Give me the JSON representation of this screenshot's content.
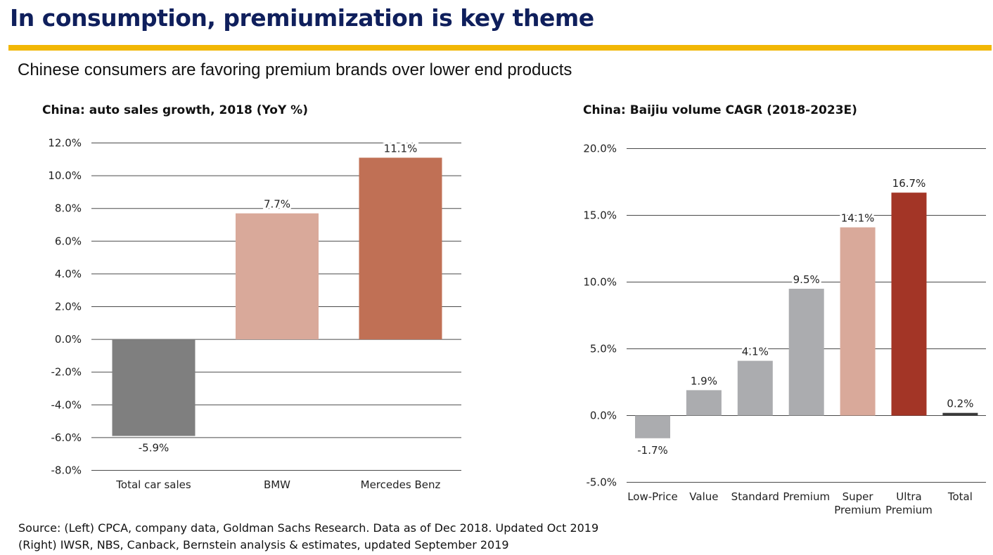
{
  "slide": {
    "title": "In consumption, premiumization is key theme",
    "subtitle": "Chinese consumers are favoring premium brands over lower end products",
    "accent_color": "#f2b705",
    "title_color": "#0f1f5c",
    "source_lines": [
      "Source: (Left) CPCA, company data, Goldman Sachs Research. Data as of Dec 2018. Updated Oct 2019",
      "(Right) IWSR, NBS, Canback, Bernstein analysis & estimates, updated September 2019"
    ]
  },
  "chart_data": [
    {
      "type": "bar",
      "title": "China: auto sales growth, 2018 (YoY %)",
      "categories": [
        "Total car sales",
        "BMW",
        "Mercedes Benz"
      ],
      "values": [
        -5.9,
        7.7,
        11.1
      ],
      "value_labels": [
        "-5.9%",
        "7.7%",
        "11.1%"
      ],
      "colors": [
        "#7f7f7f",
        "#d9a99a",
        "#c07055"
      ],
      "ylim": [
        -8,
        12
      ],
      "yticks": [
        12,
        10,
        8,
        6,
        4,
        2,
        0,
        -2,
        -4,
        -6,
        -8
      ],
      "ytick_labels": [
        "12.0%",
        "10.0%",
        "8.0%",
        "6.0%",
        "4.0%",
        "2.0%",
        "0.0%",
        "-2.0%",
        "-4.0%",
        "-6.0%",
        "-8.0%"
      ],
      "grid": true,
      "xlabel": "",
      "ylabel": ""
    },
    {
      "type": "bar",
      "title": "China: Baijiu volume CAGR (2018-2023E)",
      "categories": [
        "Low-Price",
        "Value",
        "Standard",
        "Premium",
        "Super Premium",
        "Ultra Premium",
        "Total"
      ],
      "category_lines": [
        [
          "Low-Price"
        ],
        [
          "Value"
        ],
        [
          "Standard"
        ],
        [
          "Premium"
        ],
        [
          "Super",
          "Premium"
        ],
        [
          "Ultra",
          "Premium"
        ],
        [
          "Total"
        ]
      ],
      "values": [
        -1.7,
        1.9,
        4.1,
        9.5,
        14.1,
        16.7,
        0.2
      ],
      "value_labels": [
        "-1.7%",
        "1.9%",
        "4.1%",
        "9.5%",
        "14.1%",
        "16.7%",
        "0.2%"
      ],
      "colors": [
        "#abacaf",
        "#abacaf",
        "#abacaf",
        "#abacaf",
        "#d9a99a",
        "#a33526",
        "#3a3a3a"
      ],
      "ylim": [
        -5,
        20
      ],
      "yticks": [
        20,
        15,
        10,
        5,
        0,
        -5
      ],
      "ytick_labels": [
        "20.0%",
        "15.0%",
        "10.0%",
        "5.0%",
        "0.0%",
        "-5.0%"
      ],
      "grid": true,
      "xlabel": "",
      "ylabel": ""
    }
  ]
}
